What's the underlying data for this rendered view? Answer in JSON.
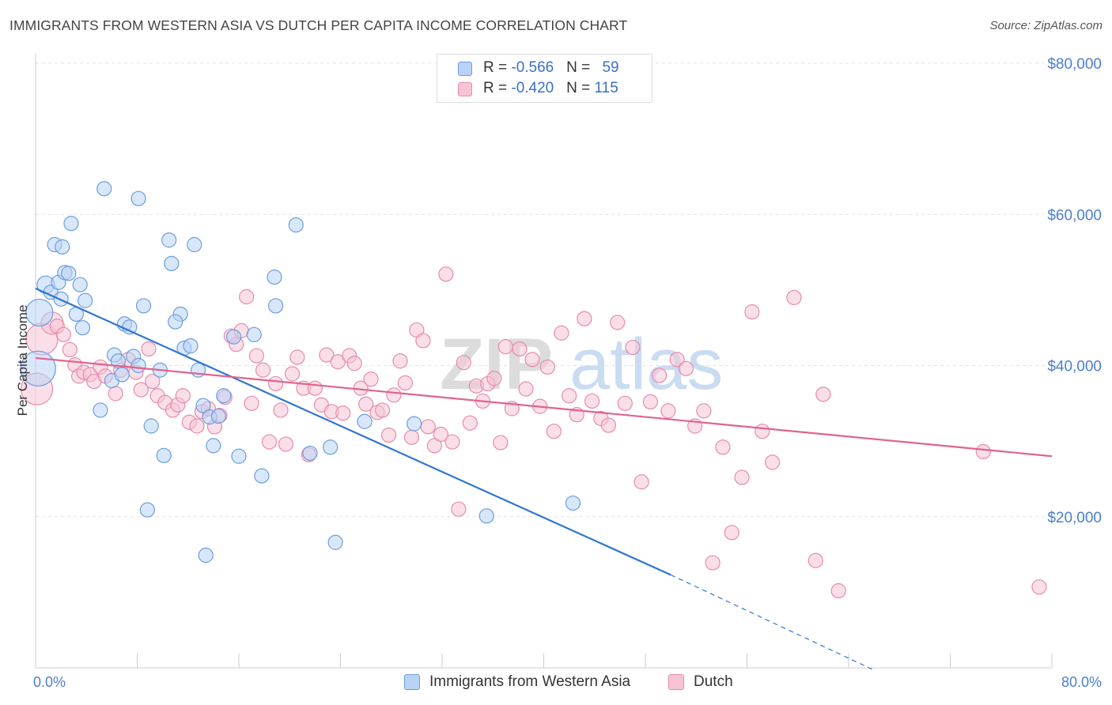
{
  "title": "IMMIGRANTS FROM WESTERN ASIA VS DUTCH PER CAPITA INCOME CORRELATION CHART",
  "source": "Source: ZipAtlas.com",
  "watermark": {
    "zip": "ZIP",
    "atlas": "atlas"
  },
  "legend": {
    "rows": [
      {
        "r_label": "R = ",
        "r_value": "-0.566",
        "n_label": "N = ",
        "n_value": "59"
      },
      {
        "r_label": "R = ",
        "r_value": "-0.420",
        "n_label": "N = ",
        "n_value": "115"
      }
    ]
  },
  "colors": {
    "blue_fill": "#b9d3f5",
    "blue_stroke": "#6a9ee0",
    "blue_line": "#2f74d0",
    "pink_fill": "#f7c4d5",
    "pink_stroke": "#e98aab",
    "pink_line": "#e0638f",
    "grid": "#e3e3e3",
    "tick_label": "#4a7fd0"
  },
  "chart_data": {
    "type": "scatter",
    "title": "IMMIGRANTS FROM WESTERN ASIA VS DUTCH PER CAPITA INCOME CORRELATION CHART",
    "xlabel": "",
    "ylabel": "Per Capita Income",
    "xlim": [
      0,
      80
    ],
    "ylim": [
      0,
      80000
    ],
    "x_tick_labels": [
      "0.0%",
      "80.0%"
    ],
    "y_ticks": [
      20000,
      40000,
      60000,
      80000
    ],
    "y_tick_labels": [
      "$20,000",
      "$40,000",
      "$60,000",
      "$80,000"
    ],
    "grid": true,
    "legend_position": "top-center",
    "series": [
      {
        "name": "Immigrants from Western Asia",
        "R": -0.566,
        "N": 59,
        "trend": {
          "x": [
            0,
            50
          ],
          "y": [
            50200,
            12300
          ],
          "dashed_to": [
            66,
            -300
          ]
        },
        "points": [
          [
            0.2,
            39600,
            22
          ],
          [
            0.3,
            47000,
            17
          ],
          [
            0.8,
            50700,
            11
          ],
          [
            1.2,
            49700,
            9
          ],
          [
            1.5,
            56000,
            9
          ],
          [
            1.8,
            51000,
            9
          ],
          [
            2.0,
            48800,
            9
          ],
          [
            2.1,
            55700,
            9
          ],
          [
            2.3,
            52300,
            9
          ],
          [
            2.6,
            52200,
            9
          ],
          [
            2.8,
            58800,
            9
          ],
          [
            3.2,
            46800,
            9
          ],
          [
            3.5,
            50700,
            9
          ],
          [
            3.7,
            45000,
            9
          ],
          [
            3.9,
            48600,
            9
          ],
          [
            5.4,
            63400,
            9
          ],
          [
            6.0,
            38000,
            9
          ],
          [
            6.2,
            41400,
            9
          ],
          [
            6.5,
            40600,
            9
          ],
          [
            6.8,
            38800,
            9
          ],
          [
            7.0,
            45500,
            9
          ],
          [
            7.4,
            45100,
            9
          ],
          [
            7.7,
            41200,
            9
          ],
          [
            8.1,
            40000,
            9
          ],
          [
            8.5,
            47900,
            9
          ],
          [
            8.8,
            20900,
            9
          ],
          [
            9.1,
            32000,
            9
          ],
          [
            9.8,
            39400,
            9
          ],
          [
            10.1,
            28100,
            9
          ],
          [
            10.5,
            56600,
            9
          ],
          [
            10.7,
            53500,
            9
          ],
          [
            11.4,
            46800,
            9
          ],
          [
            11.7,
            42300,
            9
          ],
          [
            12.2,
            42600,
            9
          ],
          [
            12.5,
            56000,
            9
          ],
          [
            12.8,
            39400,
            9
          ],
          [
            13.2,
            34700,
            9
          ],
          [
            13.4,
            14900,
            9
          ],
          [
            13.7,
            33200,
            9
          ],
          [
            14.0,
            29400,
            9
          ],
          [
            14.4,
            33300,
            9
          ],
          [
            14.8,
            36000,
            9
          ],
          [
            15.6,
            43800,
            9
          ],
          [
            16.0,
            28000,
            9
          ],
          [
            17.2,
            44100,
            9
          ],
          [
            17.8,
            25400,
            9
          ],
          [
            18.8,
            51700,
            9
          ],
          [
            18.9,
            47900,
            9
          ],
          [
            20.5,
            58600,
            9
          ],
          [
            21.6,
            28400,
            9
          ],
          [
            23.2,
            29200,
            9
          ],
          [
            23.6,
            16600,
            9
          ],
          [
            25.9,
            32600,
            9
          ],
          [
            29.8,
            32300,
            9
          ],
          [
            35.5,
            20100,
            9
          ],
          [
            42.3,
            21800,
            9
          ],
          [
            5.1,
            34100,
            9
          ],
          [
            11.0,
            45800,
            9
          ],
          [
            8.1,
            62100,
            9
          ]
        ]
      },
      {
        "name": "Dutch",
        "R": -0.42,
        "N": 115,
        "trend": {
          "x": [
            0,
            80
          ],
          "y": [
            41000,
            28000
          ]
        },
        "points": [
          [
            0.1,
            36900,
            20
          ],
          [
            0.5,
            43500,
            20
          ],
          [
            1.3,
            45600,
            14
          ],
          [
            1.7,
            45200,
            9
          ],
          [
            2.2,
            44100,
            9
          ],
          [
            2.7,
            42100,
            9
          ],
          [
            3.1,
            40100,
            9
          ],
          [
            3.4,
            38600,
            9
          ],
          [
            3.8,
            39100,
            9
          ],
          [
            4.3,
            38800,
            9
          ],
          [
            4.6,
            37900,
            9
          ],
          [
            5.1,
            39800,
            9
          ],
          [
            5.5,
            38600,
            9
          ],
          [
            6.3,
            36300,
            9
          ],
          [
            6.7,
            39400,
            9
          ],
          [
            7.3,
            40800,
            9
          ],
          [
            7.9,
            39100,
            9
          ],
          [
            8.3,
            36800,
            9
          ],
          [
            8.9,
            42200,
            9
          ],
          [
            9.2,
            37900,
            9
          ],
          [
            9.6,
            36000,
            9
          ],
          [
            10.2,
            35100,
            9
          ],
          [
            10.8,
            34100,
            9
          ],
          [
            11.2,
            34800,
            9
          ],
          [
            11.6,
            36000,
            9
          ],
          [
            12.1,
            32500,
            9
          ],
          [
            12.7,
            32000,
            9
          ],
          [
            13.1,
            33900,
            9
          ],
          [
            13.6,
            34300,
            9
          ],
          [
            14.1,
            31900,
            9
          ],
          [
            14.5,
            33400,
            9
          ],
          [
            14.9,
            35800,
            9
          ],
          [
            15.4,
            43900,
            9
          ],
          [
            15.8,
            42800,
            9
          ],
          [
            16.2,
            44600,
            9
          ],
          [
            16.6,
            49100,
            9
          ],
          [
            17.0,
            35000,
            9
          ],
          [
            17.4,
            41300,
            9
          ],
          [
            17.9,
            39400,
            9
          ],
          [
            18.4,
            29900,
            9
          ],
          [
            18.9,
            37600,
            9
          ],
          [
            19.3,
            34100,
            9
          ],
          [
            19.7,
            29600,
            9
          ],
          [
            20.2,
            38900,
            9
          ],
          [
            20.6,
            41100,
            9
          ],
          [
            21.1,
            37000,
            9
          ],
          [
            21.5,
            28200,
            9
          ],
          [
            22.0,
            37000,
            9
          ],
          [
            22.5,
            34800,
            9
          ],
          [
            22.9,
            41400,
            9
          ],
          [
            23.3,
            33900,
            9
          ],
          [
            23.8,
            40500,
            9
          ],
          [
            24.2,
            33700,
            9
          ],
          [
            24.7,
            41300,
            9
          ],
          [
            25.1,
            40300,
            9
          ],
          [
            25.6,
            37000,
            9
          ],
          [
            26.0,
            34900,
            9
          ],
          [
            26.4,
            38200,
            9
          ],
          [
            26.9,
            33800,
            9
          ],
          [
            27.3,
            34100,
            9
          ],
          [
            27.8,
            30800,
            9
          ],
          [
            28.2,
            36100,
            9
          ],
          [
            28.7,
            40600,
            9
          ],
          [
            29.1,
            37700,
            9
          ],
          [
            29.6,
            30500,
            9
          ],
          [
            30.0,
            44700,
            9
          ],
          [
            30.5,
            43300,
            9
          ],
          [
            30.9,
            31900,
            9
          ],
          [
            31.4,
            29400,
            9
          ],
          [
            31.9,
            30900,
            9
          ],
          [
            32.3,
            52100,
            9
          ],
          [
            32.8,
            29900,
            9
          ],
          [
            33.3,
            21000,
            9
          ],
          [
            33.7,
            40400,
            9
          ],
          [
            34.2,
            32400,
            9
          ],
          [
            34.7,
            37300,
            9
          ],
          [
            35.2,
            35300,
            9
          ],
          [
            35.6,
            37600,
            9
          ],
          [
            36.1,
            38300,
            9
          ],
          [
            36.6,
            29800,
            9
          ],
          [
            37.0,
            42500,
            9
          ],
          [
            37.5,
            34300,
            9
          ],
          [
            38.1,
            42200,
            9
          ],
          [
            38.6,
            36900,
            9
          ],
          [
            39.1,
            40800,
            9
          ],
          [
            39.7,
            34600,
            9
          ],
          [
            40.3,
            39800,
            9
          ],
          [
            40.8,
            31300,
            9
          ],
          [
            41.4,
            44300,
            9
          ],
          [
            42.0,
            36000,
            9
          ],
          [
            42.6,
            33500,
            9
          ],
          [
            43.2,
            46200,
            9
          ],
          [
            43.8,
            35300,
            9
          ],
          [
            44.5,
            33000,
            9
          ],
          [
            45.1,
            32100,
            9
          ],
          [
            45.8,
            45700,
            9
          ],
          [
            46.4,
            35000,
            9
          ],
          [
            47.0,
            42400,
            9
          ],
          [
            47.7,
            24600,
            9
          ],
          [
            48.4,
            35200,
            9
          ],
          [
            49.1,
            38700,
            9
          ],
          [
            49.8,
            34000,
            9
          ],
          [
            50.5,
            40800,
            9
          ],
          [
            51.2,
            39600,
            9
          ],
          [
            51.9,
            32000,
            9
          ],
          [
            52.6,
            34000,
            9
          ],
          [
            53.3,
            13900,
            9
          ],
          [
            54.1,
            29200,
            9
          ],
          [
            54.8,
            17900,
            9
          ],
          [
            55.6,
            25200,
            9
          ],
          [
            56.4,
            47100,
            9
          ],
          [
            57.2,
            31300,
            9
          ],
          [
            58.0,
            27200,
            9
          ],
          [
            59.7,
            49000,
            9
          ],
          [
            61.4,
            14200,
            9
          ],
          [
            63.2,
            10200,
            9
          ],
          [
            74.6,
            28600,
            9
          ],
          [
            62.0,
            36200,
            9
          ],
          [
            79.0,
            10700,
            9
          ]
        ]
      }
    ]
  },
  "bottom_legend": [
    {
      "label": "Immigrants from Western Asia"
    },
    {
      "label": "Dutch"
    }
  ]
}
